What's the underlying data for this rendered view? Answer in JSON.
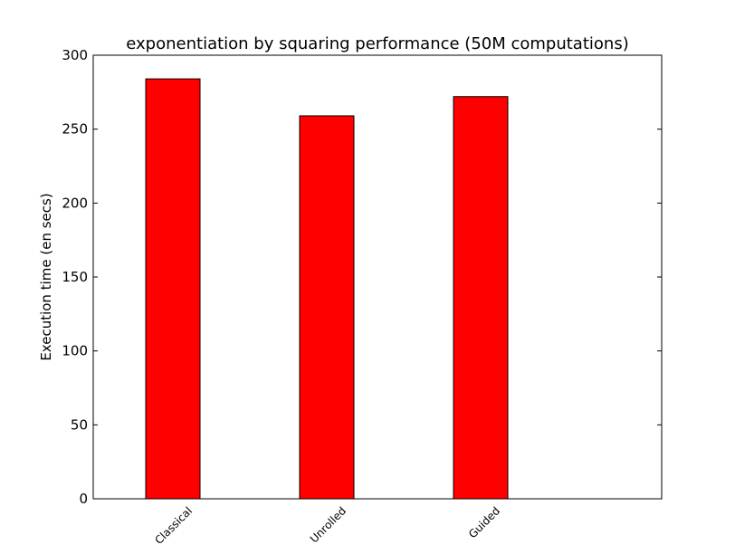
{
  "chart_data": {
    "type": "bar",
    "title": "exponentiation by squaring performance (50M computations)",
    "xlabel": "",
    "ylabel": "Execution time (en secs)",
    "categories": [
      "Classical",
      "Unrolled",
      "Guided"
    ],
    "values": [
      284,
      259,
      272
    ],
    "ylim": [
      0,
      300
    ],
    "yticks": [
      0,
      50,
      100,
      150,
      200,
      250,
      300
    ],
    "bar_color": "#ff0000",
    "bar_edge_color": "#000000",
    "grid": false,
    "legend": null
  }
}
